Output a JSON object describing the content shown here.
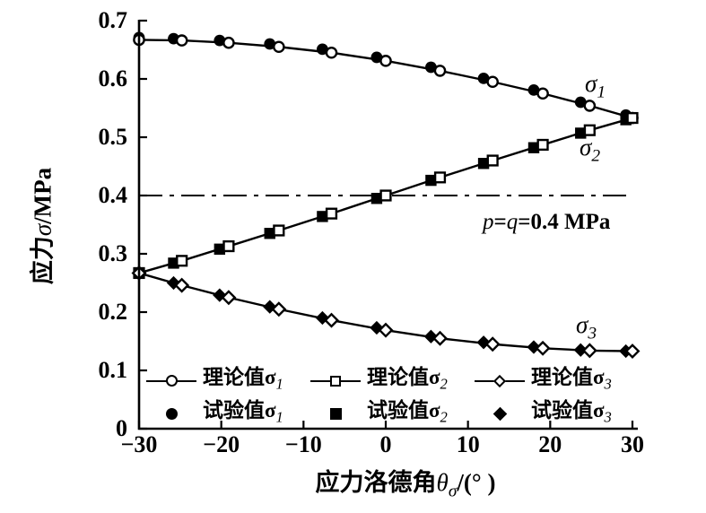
{
  "chart_data": {
    "type": "line",
    "title": "",
    "xlabel": {
      "prefix": "应力洛德角",
      "symbol": "θ",
      "symbol_sub": "σ",
      "suffix": "/(°  )"
    },
    "ylabel": {
      "prefix": "应力",
      "symbol": "σ",
      "suffix": "/MPa"
    },
    "xlim": [
      -30,
      30
    ],
    "ylim": [
      0,
      0.7
    ],
    "grid": false,
    "x_ticks": {
      "values": [
        -30,
        -20,
        -10,
        0,
        10,
        20,
        30
      ],
      "labels": [
        "−30",
        "−20",
        "−10",
        "0",
        "10",
        "20",
        "30"
      ]
    },
    "y_ticks": {
      "values": [
        0,
        0.1,
        0.2,
        0.3,
        0.4,
        0.5,
        0.6,
        0.7
      ],
      "labels": [
        "0",
        "0.1",
        "0.2",
        "0.3",
        "0.4",
        "0.5",
        "0.6",
        "0.7"
      ]
    },
    "reference_line": {
      "y": 0.4,
      "style": "dash-dot",
      "label": {
        "p": "p",
        "eq1": "=",
        "q": "q",
        "rest": "=0.4 MPa"
      }
    },
    "curve_labels": [
      {
        "base": "σ",
        "sub": "1"
      },
      {
        "base": "σ",
        "sub": "2"
      },
      {
        "base": "σ",
        "sub": "3"
      }
    ],
    "series": [
      {
        "name": "理论值σ1",
        "role": "theory",
        "marker": "open-circle",
        "line": true,
        "x": [
          -30,
          -24.8,
          -19.1,
          -13,
          -6.6,
          0,
          6.6,
          13,
          19.1,
          24.8,
          30
        ],
        "y": [
          0.667,
          0.666,
          0.662,
          0.655,
          0.645,
          0.631,
          0.614,
          0.595,
          0.575,
          0.554,
          0.533
        ]
      },
      {
        "name": "理论值σ2",
        "role": "theory",
        "marker": "open-square",
        "line": true,
        "x": [
          -30,
          -24.8,
          -19.1,
          -13,
          -6.6,
          0,
          6.6,
          13,
          19.1,
          24.8,
          30
        ],
        "y": [
          0.267,
          0.288,
          0.313,
          0.34,
          0.369,
          0.4,
          0.431,
          0.46,
          0.487,
          0.512,
          0.533
        ]
      },
      {
        "name": "理论值σ3",
        "role": "theory",
        "marker": "open-diamond",
        "line": true,
        "x": [
          -30,
          -24.8,
          -19.1,
          -13,
          -6.6,
          0,
          6.6,
          13,
          19.1,
          24.8,
          30
        ],
        "y": [
          0.267,
          0.246,
          0.225,
          0.205,
          0.186,
          0.169,
          0.155,
          0.145,
          0.138,
          0.134,
          0.133
        ]
      },
      {
        "name": "试验值σ1",
        "role": "experiment",
        "marker": "filled-circle",
        "line": false,
        "x": [
          -30,
          -25.8,
          -20.2,
          -14.1,
          -7.7,
          -1.1,
          5.5,
          11.9,
          18,
          23.7,
          29.2
        ],
        "y": [
          0.671,
          0.669,
          0.666,
          0.66,
          0.651,
          0.637,
          0.62,
          0.601,
          0.581,
          0.56,
          0.538
        ]
      },
      {
        "name": "试验值σ2",
        "role": "experiment",
        "marker": "filled-square",
        "line": false,
        "x": [
          -30,
          -25.8,
          -20.2,
          -14.1,
          -7.7,
          -1.1,
          5.5,
          11.9,
          18,
          23.7,
          29.2
        ],
        "y": [
          0.267,
          0.284,
          0.308,
          0.335,
          0.364,
          0.395,
          0.426,
          0.455,
          0.482,
          0.507,
          0.53
        ]
      },
      {
        "name": "试验值σ3",
        "role": "experiment",
        "marker": "filled-diamond",
        "line": false,
        "x": [
          -30,
          -25.8,
          -20.2,
          -14.1,
          -7.7,
          -1.1,
          5.5,
          11.9,
          18,
          23.7,
          29.2
        ],
        "y": [
          0.267,
          0.25,
          0.229,
          0.209,
          0.19,
          0.173,
          0.158,
          0.148,
          0.14,
          0.135,
          0.133
        ]
      }
    ],
    "legend_position": "inside-bottom"
  },
  "legend": {
    "rows": [
      {
        "entries": [
          {
            "marker": "circle-open",
            "label": "理论值σ",
            "sub": "1"
          },
          {
            "marker": "square-open",
            "label": "理论值σ",
            "sub": "2"
          },
          {
            "marker": "diamond-open",
            "label": "理论值σ",
            "sub": "3"
          }
        ]
      },
      {
        "entries": [
          {
            "marker": "circle-filled",
            "label": "试验值σ",
            "sub": "1"
          },
          {
            "marker": "square-filled",
            "label": "试验值σ",
            "sub": "2"
          },
          {
            "marker": "diamond-filled",
            "label": "试验值σ",
            "sub": "3"
          }
        ]
      }
    ]
  },
  "colors": {
    "ink": "#000000",
    "background": "#ffffff"
  }
}
